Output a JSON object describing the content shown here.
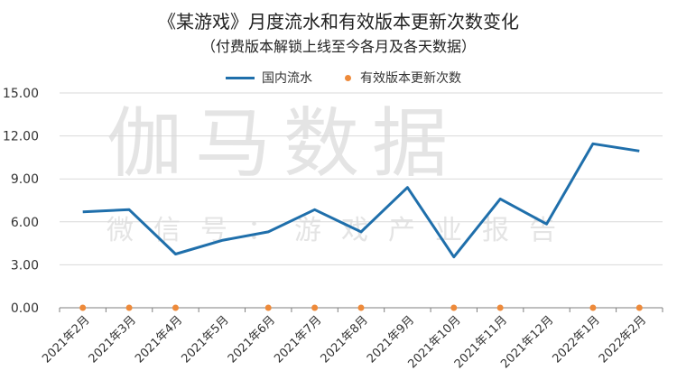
{
  "title": "《某游戏》月度流水和有效版本更新次数变化",
  "subtitle": "（付费版本解锁上线至今各月及各天数据）",
  "watermark": {
    "main": "伽马数据",
    "sub": "微信号：游戏产业报告"
  },
  "colors": {
    "revenue": "#1f6fab",
    "updates": "#ee8a3a",
    "grid": "#d9d9d9",
    "axis": "#7f7f7f"
  },
  "chart_data": {
    "type": "line",
    "categories": [
      "2021年2月",
      "2021年3月",
      "2021年4月",
      "2021年5月",
      "2021年6月",
      "2021年7月",
      "2021年8月",
      "2021年9月",
      "2021年10月",
      "2021年11月",
      "2021年12月",
      "2022年1月",
      "2022年2月"
    ],
    "ylim": [
      0,
      15
    ],
    "yticks": [
      "0.00",
      "3.00",
      "6.00",
      "9.00",
      "12.00",
      "15.00"
    ],
    "grid": true,
    "legend_position": "top",
    "series": [
      {
        "name": "国内流水",
        "type": "line",
        "values": [
          6.7,
          6.85,
          3.75,
          4.7,
          5.3,
          6.85,
          5.3,
          8.4,
          3.55,
          7.6,
          5.85,
          11.45,
          10.95
        ]
      },
      {
        "name": "有效版本更新次数",
        "type": "scatter",
        "values": [
          0,
          0,
          0,
          null,
          0,
          0,
          0,
          null,
          0,
          0,
          null,
          0,
          0
        ]
      }
    ]
  }
}
